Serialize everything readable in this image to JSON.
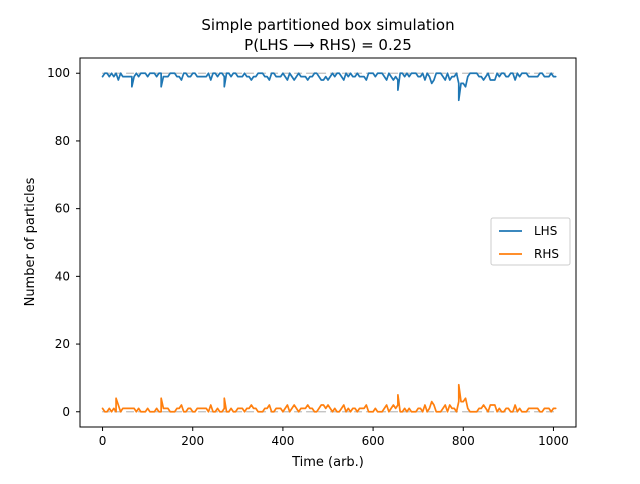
{
  "chart_data": {
    "type": "line",
    "title": "Simple partitioned box simulation",
    "subtitle": "P(LHS ⟶ RHS) = 0.25",
    "xlabel": "Time (arb.)",
    "ylabel": "Number of particles",
    "xlim": [
      -50,
      1050
    ],
    "ylim": [
      -4.5,
      104.5
    ],
    "x_ticks": [
      0,
      200,
      400,
      600,
      800,
      1000
    ],
    "y_ticks": [
      0,
      20,
      40,
      60,
      80,
      100
    ],
    "x_tick_labels": [
      "0",
      "200",
      "400",
      "600",
      "800",
      "1000"
    ],
    "y_tick_labels": [
      "0",
      "20",
      "40",
      "60",
      "80",
      "100"
    ],
    "grid": false,
    "legend_position": "center-right",
    "x_step": 5,
    "series": [
      {
        "name": "LHS",
        "color": "#1f77b4",
        "values": [
          99,
          100,
          100,
          99,
          100,
          99,
          100,
          98,
          100,
          99,
          99,
          99,
          99,
          99,
          99,
          100,
          99,
          100,
          100,
          100,
          99,
          100,
          100,
          100,
          99,
          100,
          100,
          99,
          99,
          99,
          100,
          100,
          100,
          99,
          99,
          98,
          100,
          100,
          99,
          99,
          100,
          100,
          99,
          99,
          99,
          99,
          99,
          100,
          98,
          100,
          100,
          99,
          100,
          100,
          99,
          100,
          100,
          99,
          100,
          100,
          99,
          99,
          99,
          100,
          99,
          99,
          98,
          99,
          99,
          100,
          100,
          100,
          99,
          99,
          98,
          100,
          100,
          99,
          99,
          99,
          100,
          99,
          98,
          100,
          99,
          98,
          99,
          100,
          99,
          99,
          99,
          98,
          99,
          99,
          100,
          100,
          99,
          98,
          98,
          99,
          98,
          99,
          100,
          99,
          100,
          100,
          99,
          98,
          100,
          99,
          100,
          99,
          99,
          100,
          99,
          99,
          99,
          98,
          100,
          100,
          100,
          99,
          100,
          100,
          100,
          99,
          98,
          100,
          99,
          98,
          99,
          98,
          100,
          100,
          99,
          100,
          99,
          100,
          100,
          100,
          99,
          99,
          100,
          98,
          100,
          99,
          97,
          98,
          100,
          100,
          100,
          99,
          98,
          100,
          98,
          99,
          99,
          100,
          97,
          97,
          97,
          96,
          99,
          100,
          100,
          100,
          100,
          99,
          99,
          98,
          99,
          100,
          98,
          98,
          98,
          100,
          99,
          100,
          100,
          99,
          99,
          100,
          100,
          98,
          100,
          99,
          100,
          100,
          100,
          99,
          99,
          99,
          99,
          99,
          100,
          100,
          99,
          99,
          99,
          100,
          99,
          99
        ],
        "extra_points": [
          [
            65,
            96
          ],
          [
            130,
            96
          ],
          [
            270,
            96
          ],
          [
            655,
            95
          ],
          [
            790,
            92
          ]
        ]
      },
      {
        "name": "RHS",
        "color": "#ff7f0e",
        "values": [
          1,
          0,
          0,
          1,
          0,
          1,
          0,
          2,
          0,
          1,
          1,
          1,
          1,
          1,
          1,
          0,
          1,
          0,
          0,
          0,
          1,
          0,
          0,
          0,
          1,
          0,
          0,
          1,
          1,
          1,
          0,
          0,
          0,
          1,
          1,
          2,
          0,
          0,
          1,
          1,
          0,
          0,
          1,
          1,
          1,
          1,
          1,
          0,
          2,
          0,
          0,
          1,
          0,
          0,
          1,
          0,
          0,
          1,
          0,
          0,
          1,
          1,
          1,
          0,
          1,
          1,
          2,
          1,
          1,
          0,
          0,
          0,
          1,
          1,
          2,
          0,
          0,
          1,
          1,
          1,
          0,
          1,
          2,
          0,
          1,
          2,
          1,
          0,
          1,
          1,
          1,
          2,
          1,
          1,
          0,
          0,
          1,
          2,
          2,
          1,
          2,
          1,
          0,
          1,
          0,
          0,
          1,
          2,
          0,
          1,
          0,
          1,
          1,
          0,
          1,
          1,
          1,
          2,
          0,
          0,
          0,
          1,
          0,
          0,
          0,
          1,
          2,
          0,
          1,
          2,
          1,
          2,
          0,
          0,
          1,
          0,
          1,
          0,
          0,
          0,
          1,
          1,
          0,
          2,
          0,
          1,
          3,
          2,
          0,
          0,
          0,
          1,
          2,
          0,
          2,
          1,
          1,
          0,
          3,
          3,
          3,
          4,
          1,
          0,
          0,
          0,
          0,
          1,
          1,
          2,
          1,
          0,
          2,
          2,
          2,
          0,
          1,
          0,
          0,
          1,
          1,
          0,
          0,
          2,
          0,
          1,
          0,
          0,
          0,
          1,
          1,
          1,
          1,
          1,
          0,
          0,
          1,
          1,
          1,
          0,
          1,
          1
        ],
        "extra_points": [
          [
            30,
            4
          ],
          [
            130,
            4
          ],
          [
            270,
            4
          ],
          [
            655,
            5
          ],
          [
            790,
            8
          ]
        ]
      },
      {
        "name": "",
        "color": "#bdbdbd",
        "values": [
          100
        ],
        "extra_points": [
          [
            1000,
            100
          ]
        ]
      },
      {
        "name": "",
        "color": "#bdbdbd",
        "values": [
          0
        ],
        "extra_points": [
          [
            1000,
            0
          ]
        ]
      }
    ]
  }
}
